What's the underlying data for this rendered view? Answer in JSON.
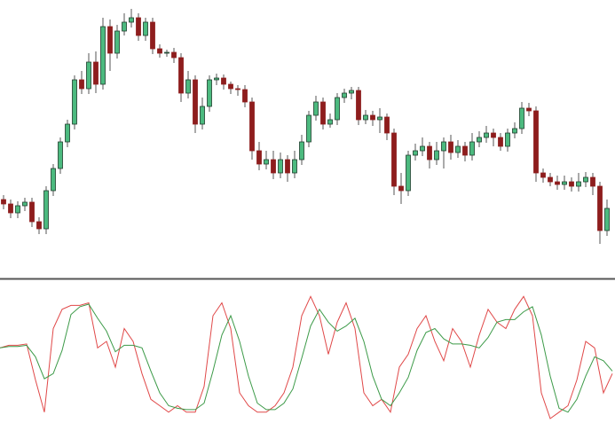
{
  "chart_data": [
    {
      "type": "candlestick",
      "title": "",
      "xlabel": "",
      "ylabel": "",
      "grid": false,
      "colors": {
        "bull": "#4cba7f",
        "bull_border": "#1f3d2c",
        "bear": "#8e1d1d",
        "wick": "#555555"
      },
      "ohlc": [
        [
          95,
          100,
          84,
          90
        ],
        [
          90,
          95,
          74,
          80
        ],
        [
          80,
          93,
          74,
          88
        ],
        [
          88,
          97,
          82,
          92
        ],
        [
          92,
          97,
          64,
          70
        ],
        [
          70,
          75,
          56,
          62
        ],
        [
          62,
          110,
          56,
          105
        ],
        [
          105,
          135,
          99,
          130
        ],
        [
          130,
          165,
          124,
          160
        ],
        [
          160,
          185,
          154,
          180
        ],
        [
          180,
          235,
          174,
          230
        ],
        [
          230,
          240,
          214,
          220
        ],
        [
          220,
          260,
          214,
          250
        ],
        [
          250,
          262,
          215,
          225
        ],
        [
          225,
          300,
          219,
          290
        ],
        [
          290,
          298,
          240,
          260
        ],
        [
          260,
          292,
          254,
          285
        ],
        [
          285,
          305,
          280,
          295
        ],
        [
          295,
          310,
          289,
          300
        ],
        [
          300,
          305,
          274,
          280
        ],
        [
          280,
          300,
          274,
          295
        ],
        [
          295,
          300,
          259,
          265
        ],
        [
          265,
          270,
          255,
          260
        ],
        [
          260,
          264,
          256,
          261
        ],
        [
          261,
          266,
          249,
          255
        ],
        [
          255,
          260,
          205,
          215
        ],
        [
          215,
          240,
          209,
          230
        ],
        [
          230,
          235,
          170,
          180
        ],
        [
          180,
          210,
          174,
          200
        ],
        [
          200,
          235,
          194,
          230
        ],
        [
          230,
          237,
          224,
          232
        ],
        [
          232,
          236,
          219,
          225
        ],
        [
          225,
          228,
          214,
          220
        ],
        [
          220,
          224,
          212,
          219
        ],
        [
          219,
          224,
          199,
          205
        ],
        [
          205,
          210,
          140,
          150
        ],
        [
          150,
          160,
          128,
          135
        ],
        [
          135,
          150,
          129,
          140
        ],
        [
          140,
          150,
          118,
          125
        ],
        [
          125,
          148,
          119,
          140
        ],
        [
          140,
          145,
          115,
          125
        ],
        [
          125,
          150,
          119,
          140
        ],
        [
          140,
          168,
          134,
          160
        ],
        [
          160,
          195,
          154,
          190
        ],
        [
          190,
          212,
          184,
          205
        ],
        [
          205,
          210,
          174,
          180
        ],
        [
          180,
          192,
          176,
          185
        ],
        [
          185,
          215,
          179,
          210
        ],
        [
          210,
          220,
          204,
          215
        ],
        [
          215,
          222,
          208,
          218
        ],
        [
          218,
          222,
          179,
          185
        ],
        [
          185,
          196,
          180,
          190
        ],
        [
          190,
          195,
          178,
          185
        ],
        [
          185,
          198,
          170,
          188
        ],
        [
          188,
          192,
          162,
          170
        ],
        [
          170,
          175,
          100,
          110
        ],
        [
          110,
          125,
          90,
          105
        ],
        [
          105,
          150,
          99,
          145
        ],
        [
          145,
          158,
          139,
          150
        ],
        [
          150,
          165,
          144,
          155
        ],
        [
          155,
          160,
          130,
          140
        ],
        [
          140,
          160,
          134,
          150
        ],
        [
          150,
          165,
          130,
          160
        ],
        [
          160,
          168,
          140,
          148
        ],
        [
          148,
          162,
          142,
          155
        ],
        [
          155,
          160,
          138,
          145
        ],
        [
          145,
          170,
          139,
          160
        ],
        [
          160,
          172,
          154,
          165
        ],
        [
          165,
          178,
          159,
          170
        ],
        [
          170,
          175,
          155,
          165
        ],
        [
          165,
          170,
          150,
          155
        ],
        [
          155,
          175,
          149,
          170
        ],
        [
          170,
          182,
          164,
          175
        ],
        [
          175,
          205,
          169,
          198
        ],
        [
          198,
          204,
          189,
          195
        ],
        [
          195,
          200,
          115,
          125
        ],
        [
          125,
          130,
          114,
          120
        ],
        [
          120,
          125,
          110,
          115
        ],
        [
          115,
          122,
          106,
          112
        ],
        [
          112,
          122,
          106,
          115
        ],
        [
          115,
          120,
          104,
          110
        ],
        [
          110,
          125,
          104,
          115
        ],
        [
          115,
          126,
          109,
          120
        ],
        [
          120,
          125,
          100,
          110
        ],
        [
          110,
          115,
          45,
          60
        ],
        [
          60,
          95,
          54,
          85
        ]
      ]
    },
    {
      "type": "line",
      "title": "",
      "xlabel": "",
      "ylabel": "",
      "grid": false,
      "ylim": [
        0,
        100
      ],
      "series": [
        {
          "color": "#e04848",
          "values": [
            55,
            57,
            57,
            58,
            30,
            5,
            70,
            85,
            88,
            88,
            90,
            55,
            60,
            40,
            70,
            60,
            35,
            15,
            10,
            5,
            10,
            5,
            5,
            25,
            80,
            90,
            70,
            20,
            10,
            5,
            5,
            10,
            20,
            40,
            80,
            95,
            80,
            50,
            75,
            90,
            70,
            20,
            10,
            15,
            5,
            40,
            50,
            70,
            80,
            60,
            45,
            70,
            60,
            40,
            65,
            85,
            75,
            70,
            85,
            95,
            80,
            20,
            0,
            5,
            10,
            30,
            60,
            55,
            20,
            35
          ]
        },
        {
          "color": "#3c9a48",
          "values": [
            55,
            56,
            56,
            57,
            48,
            31,
            35,
            53,
            81,
            87,
            89,
            78,
            68,
            52,
            57,
            57,
            55,
            37,
            20,
            10,
            8,
            7,
            7,
            12,
            37,
            65,
            80,
            60,
            33,
            12,
            7,
            7,
            12,
            23,
            47,
            72,
            85,
            75,
            68,
            72,
            78,
            60,
            33,
            15,
            10,
            20,
            32,
            53,
            67,
            70,
            62,
            58,
            58,
            57,
            55,
            63,
            75,
            77,
            77,
            83,
            87,
            65,
            33,
            8,
            5,
            15,
            33,
            48,
            45,
            37
          ]
        }
      ]
    }
  ],
  "separator_color": "#555555"
}
